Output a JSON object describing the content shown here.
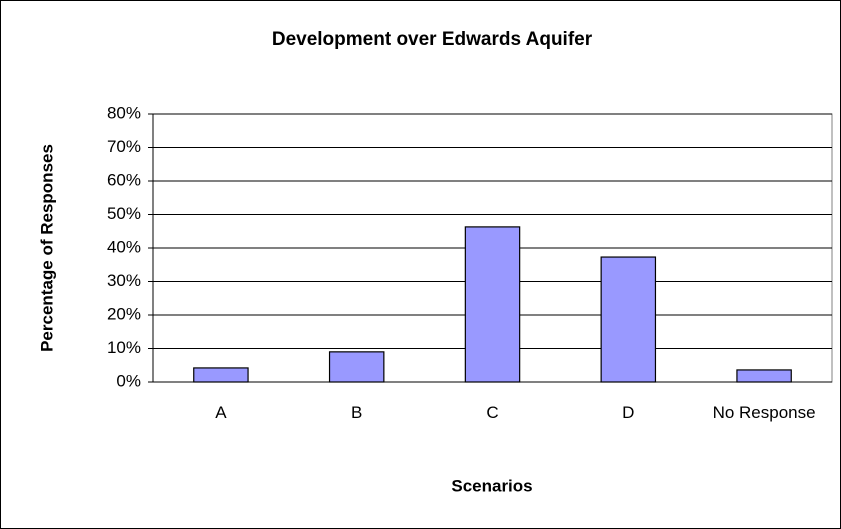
{
  "chart_data": {
    "type": "bar",
    "title": "Development over Edwards Aquifer",
    "x_label": "Scenarios",
    "y_label": "Percentage of Responses",
    "categories": [
      "A",
      "B",
      "C",
      "D",
      "No Response"
    ],
    "values": [
      4.2,
      9,
      46.3,
      37.3,
      3.6
    ],
    "color": "#9999ff",
    "ylim": [
      0,
      80
    ],
    "yticks": [
      {
        "value": 0,
        "label": "0%"
      },
      {
        "value": 10,
        "label": "10%"
      },
      {
        "value": 20,
        "label": "20%"
      },
      {
        "value": 30,
        "label": "30%"
      },
      {
        "value": 40,
        "label": "40%"
      },
      {
        "value": 50,
        "label": "50%"
      },
      {
        "value": 60,
        "label": "60%"
      },
      {
        "value": 70,
        "label": "70%"
      },
      {
        "value": 80,
        "label": "80%"
      }
    ],
    "grid": true
  }
}
